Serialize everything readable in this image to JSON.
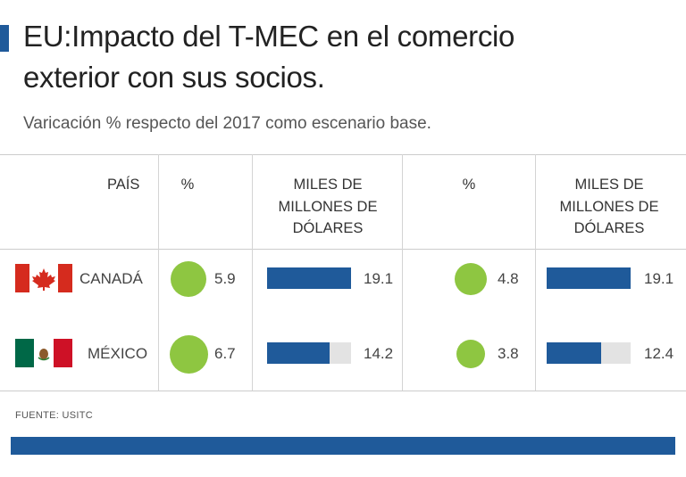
{
  "title_lines": [
    "EU:Impacto del T-MEC en el comercio",
    "exterior con sus socios."
  ],
  "subtitle": "Varicación % respecto del 2017 como escenario base.",
  "headers": {
    "pais": "PAÍS",
    "pct1": "%",
    "usd1": [
      "MILES DE",
      "MILLONES DE",
      "DÓLARES"
    ],
    "pct2": "%",
    "usd2": [
      "MILES DE",
      "MILLONES DE",
      "DÓLARES"
    ]
  },
  "source": "FUENTE: USITC",
  "colors": {
    "accent": "#1f5a9a",
    "circle": "#8ec641",
    "track": "#e3e3e3"
  },
  "chart_data": {
    "type": "table",
    "columns": [
      "PAÍS",
      "%",
      "MILES DE MILLONES DE DÓLARES",
      "%",
      "MILES DE MILLONES DE DÓLARES"
    ],
    "rows": [
      {
        "country": "CANADÁ",
        "flag": "canada-flag",
        "pct1": 5.9,
        "pct1_label": "5.9",
        "usd1": 19.1,
        "usd1_label": "19.1",
        "pct2": 4.8,
        "pct2_label": "4.8",
        "usd2": 19.1,
        "usd2_label": "19.1"
      },
      {
        "country": "MÉXICO",
        "flag": "mexico-flag",
        "pct1": 6.7,
        "pct1_label": "6.7",
        "usd1": 14.2,
        "usd1_label": "14.2",
        "pct2": 3.8,
        "pct2_label": "3.8",
        "usd2": 12.4,
        "usd2_label": "12.4"
      }
    ],
    "usd_max": 19.1
  }
}
